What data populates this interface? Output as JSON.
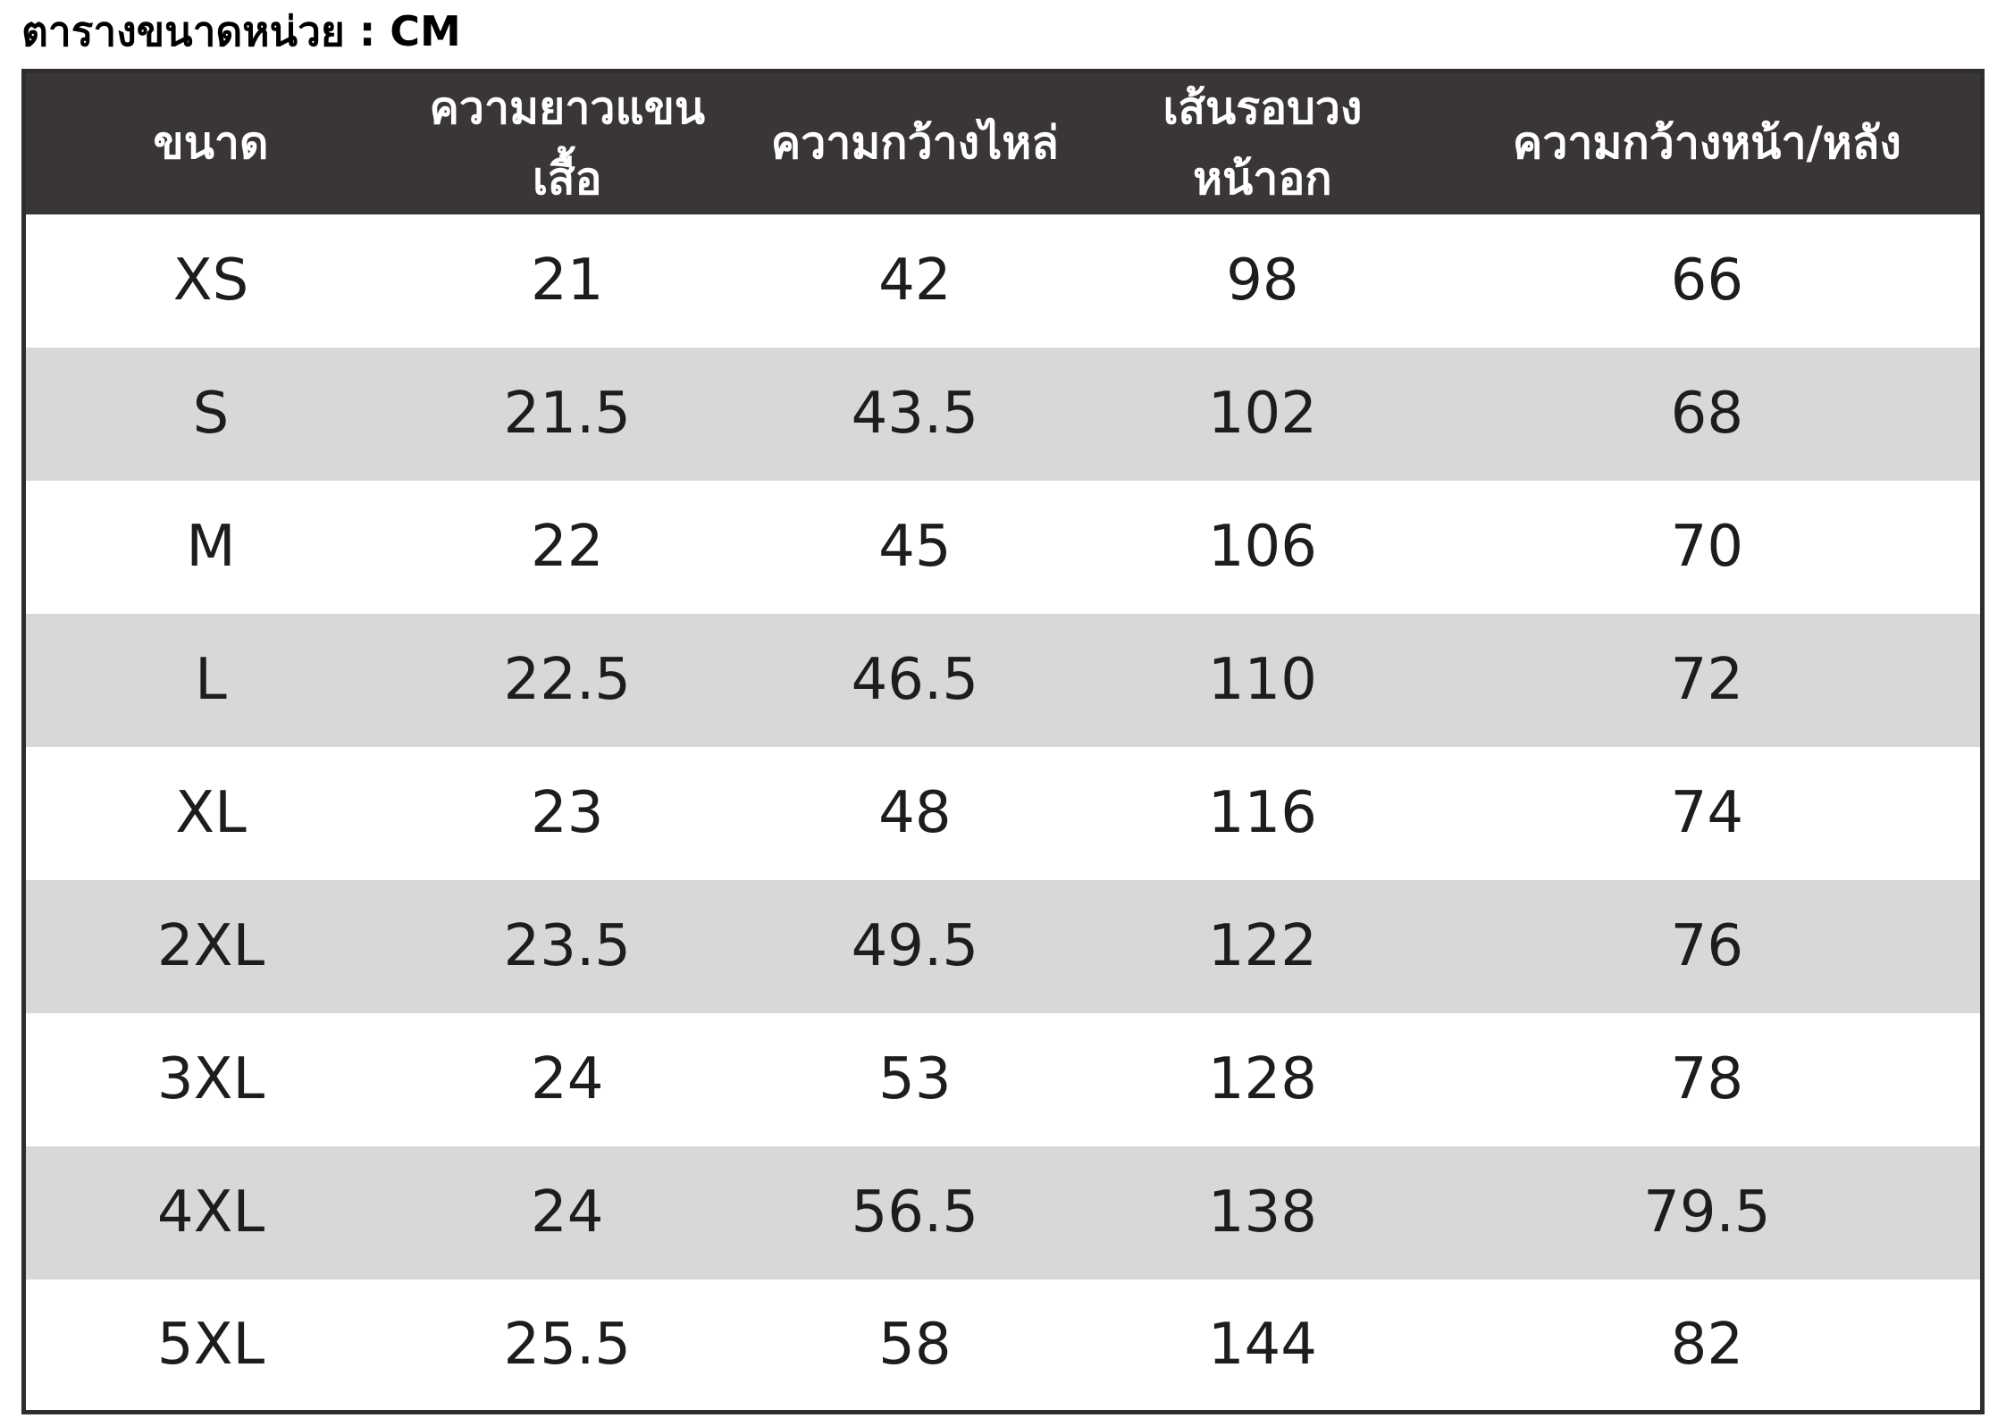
{
  "title": "ตารางขนาดหน่วย : CM",
  "chart_data": {
    "type": "table",
    "title": "ตารางขนาดหน่วย : CM",
    "unit": "CM",
    "columns": [
      "ขนาด",
      "ความยาวแขนเสื้อ",
      "ความกว้างไหล่",
      "เส้นรอบวงหน้าอก",
      "ความกว้างหน้า/หลัง"
    ],
    "rows": [
      [
        "XS",
        "21",
        "42",
        "98",
        "66"
      ],
      [
        "S",
        "21.5",
        "43.5",
        "102",
        "68"
      ],
      [
        "M",
        "22",
        "45",
        "106",
        "70"
      ],
      [
        "L",
        "22.5",
        "46.5",
        "110",
        "72"
      ],
      [
        "XL",
        "23",
        "48",
        "116",
        "74"
      ],
      [
        "2XL",
        "23.5",
        "49.5",
        "122",
        "76"
      ],
      [
        "3XL",
        "24",
        "53",
        "128",
        "78"
      ],
      [
        "4XL",
        "24",
        "56.5",
        "138",
        "79.5"
      ],
      [
        "5XL",
        "25.5",
        "58",
        "144",
        "82"
      ]
    ]
  },
  "colors": {
    "header-bg": "#3a3637",
    "header-text": "#ffffff",
    "row-bg": "#ffffff",
    "row-alt-bg": "#d8d8d8",
    "border": "#2e2c2c",
    "text": "#1d1d1d"
  }
}
